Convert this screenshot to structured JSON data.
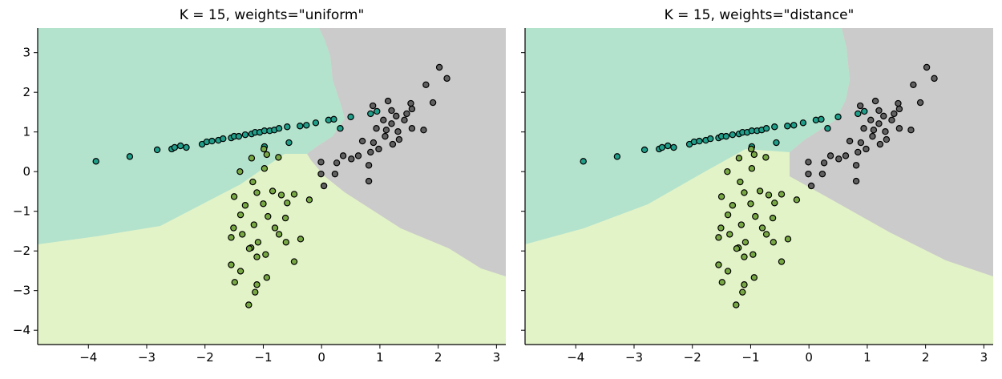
{
  "chart_data": [
    {
      "type": "scatter",
      "title": "K = 15, weights=\"uniform\"",
      "xlim": [
        -4.87,
        3.16
      ],
      "ylim": [
        -4.36,
        3.62
      ],
      "xticks": [
        {
          "value": -4,
          "label": "−4"
        },
        {
          "value": -3,
          "label": "−3"
        },
        {
          "value": -2,
          "label": "−2"
        },
        {
          "value": -1,
          "label": "−1"
        },
        0,
        1,
        2,
        3
      ],
      "yticks": [
        {
          "value": -4,
          "label": "−4"
        },
        {
          "value": -3,
          "label": "−3"
        },
        {
          "value": -2,
          "label": "−2"
        },
        {
          "value": -1,
          "label": "−1"
        },
        0,
        1,
        2,
        3
      ],
      "ytick_labels": true,
      "series": [
        {
          "color": "#1f9e89",
          "x": [
            -3.87,
            -3.29,
            -2.82,
            -2.57,
            -2.52,
            -2.42,
            -2.32,
            -2.05,
            -1.97,
            -1.88,
            -1.77,
            -1.69,
            -1.55,
            -1.5,
            -1.42,
            -1.31,
            -1.2,
            -1.14,
            -1.06,
            -0.98,
            -0.89,
            -0.81,
            -0.73,
            -0.59,
            -0.37,
            -0.26,
            -0.1,
            0.12,
            0.21,
            0.5,
            0.84,
            0.95,
            0.32,
            -0.56,
            -0.98
          ],
          "y": [
            0.26,
            0.38,
            0.55,
            0.57,
            0.61,
            0.65,
            0.61,
            0.69,
            0.75,
            0.77,
            0.79,
            0.83,
            0.85,
            0.89,
            0.89,
            0.93,
            0.95,
            0.99,
            0.99,
            1.03,
            1.03,
            1.05,
            1.09,
            1.13,
            1.15,
            1.17,
            1.23,
            1.3,
            1.32,
            1.38,
            1.46,
            1.52,
            1.09,
            0.73,
            0.63
          ]
        },
        {
          "color": "#78a844",
          "x": [
            -0.99,
            -0.94,
            -1.2,
            -0.74,
            -1.4,
            -0.98,
            -1.18,
            -1.5,
            -1.11,
            -0.84,
            -0.47,
            -0.69,
            -0.21,
            -1.31,
            -1.0,
            -0.59,
            -1.39,
            -0.92,
            -0.62,
            -1.16,
            -1.51,
            -0.8,
            -1.36,
            -0.73,
            -0.36,
            -1.55,
            -1.09,
            -1.21,
            -0.61,
            -0.96,
            -1.55,
            -0.47,
            -1.39,
            -0.94,
            -1.49,
            -1.11,
            -1.14,
            -1.25,
            -1.24,
            -1.11
          ],
          "y": [
            0.57,
            0.43,
            0.34,
            0.36,
            0.0,
            0.08,
            -0.26,
            -0.63,
            -0.53,
            -0.49,
            -0.57,
            -0.59,
            -0.71,
            -0.85,
            -0.81,
            -0.79,
            -1.09,
            -1.13,
            -1.17,
            -1.34,
            -1.42,
            -1.42,
            -1.58,
            -1.58,
            -1.7,
            -1.66,
            -1.78,
            -1.92,
            -1.78,
            -2.09,
            -2.35,
            -2.27,
            -2.51,
            -2.67,
            -2.79,
            -2.85,
            -3.04,
            -3.36,
            -1.94,
            -2.15
          ]
        },
        {
          "color": "#606060",
          "x": [
            2.02,
            2.15,
            1.79,
            0.88,
            1.14,
            1.53,
            1.91,
            1.55,
            1.28,
            1.06,
            1.2,
            1.42,
            0.94,
            1.11,
            1.31,
            1.55,
            1.09,
            1.33,
            1.75,
            0.89,
            1.22,
            0.7,
            0.98,
            0.84,
            0.63,
            0.51,
            0.37,
            -0.01,
            0.26,
            0.81,
            -0.01,
            0.23,
            0.04,
            0.81,
            1.46,
            1.2
          ],
          "y": [
            2.63,
            2.35,
            2.19,
            1.66,
            1.78,
            1.72,
            1.74,
            1.58,
            1.4,
            1.3,
            1.21,
            1.3,
            1.09,
            1.05,
            1.01,
            1.09,
            0.89,
            0.81,
            1.05,
            0.73,
            0.69,
            0.77,
            0.57,
            0.49,
            0.4,
            0.32,
            0.4,
            0.24,
            0.22,
            0.16,
            -0.06,
            -0.06,
            -0.36,
            -0.24,
            1.46,
            1.54
          ]
        }
      ]
    },
    {
      "type": "scatter",
      "title": "K = 15, weights=\"distance\"",
      "xlim": [
        -4.87,
        3.16
      ],
      "ylim": [
        -4.36,
        3.62
      ],
      "xticks": [
        {
          "value": -4,
          "label": "−4"
        },
        {
          "value": -3,
          "label": "−3"
        },
        {
          "value": -2,
          "label": "−2"
        },
        {
          "value": -1,
          "label": "−1"
        },
        0,
        1,
        2,
        3
      ],
      "yticks": [
        -4,
        -3,
        -2,
        -1,
        0,
        1,
        2,
        3
      ],
      "ytick_labels": false,
      "series": [
        {
          "color": "#1f9e89",
          "x": [
            -3.87,
            -3.29,
            -2.82,
            -2.57,
            -2.52,
            -2.42,
            -2.32,
            -2.05,
            -1.97,
            -1.88,
            -1.77,
            -1.69,
            -1.55,
            -1.5,
            -1.42,
            -1.31,
            -1.2,
            -1.14,
            -1.06,
            -0.98,
            -0.89,
            -0.81,
            -0.73,
            -0.59,
            -0.37,
            -0.26,
            -0.1,
            0.12,
            0.21,
            0.5,
            0.84,
            0.95,
            0.32,
            -0.56,
            -0.98
          ],
          "y": [
            0.26,
            0.38,
            0.55,
            0.57,
            0.61,
            0.65,
            0.61,
            0.69,
            0.75,
            0.77,
            0.79,
            0.83,
            0.85,
            0.89,
            0.89,
            0.93,
            0.95,
            0.99,
            0.99,
            1.03,
            1.03,
            1.05,
            1.09,
            1.13,
            1.15,
            1.17,
            1.23,
            1.3,
            1.32,
            1.38,
            1.46,
            1.52,
            1.09,
            0.73,
            0.63
          ]
        },
        {
          "color": "#78a844",
          "x": [
            -0.99,
            -0.94,
            -1.2,
            -0.74,
            -1.4,
            -0.98,
            -1.18,
            -1.5,
            -1.11,
            -0.84,
            -0.47,
            -0.69,
            -0.21,
            -1.31,
            -1.0,
            -0.59,
            -1.39,
            -0.92,
            -0.62,
            -1.16,
            -1.51,
            -0.8,
            -1.36,
            -0.73,
            -0.36,
            -1.55,
            -1.09,
            -1.21,
            -0.61,
            -0.96,
            -1.55,
            -0.47,
            -1.39,
            -0.94,
            -1.49,
            -1.11,
            -1.14,
            -1.25,
            -1.24,
            -1.11
          ],
          "y": [
            0.57,
            0.43,
            0.34,
            0.36,
            0.0,
            0.08,
            -0.26,
            -0.63,
            -0.53,
            -0.49,
            -0.57,
            -0.59,
            -0.71,
            -0.85,
            -0.81,
            -0.79,
            -1.09,
            -1.13,
            -1.17,
            -1.34,
            -1.42,
            -1.42,
            -1.58,
            -1.58,
            -1.7,
            -1.66,
            -1.78,
            -1.92,
            -1.78,
            -2.09,
            -2.35,
            -2.27,
            -2.51,
            -2.67,
            -2.79,
            -2.85,
            -3.04,
            -3.36,
            -1.94,
            -2.15
          ]
        },
        {
          "color": "#606060",
          "x": [
            2.02,
            2.15,
            1.79,
            0.88,
            1.14,
            1.53,
            1.91,
            1.55,
            1.28,
            1.06,
            1.2,
            1.42,
            0.94,
            1.11,
            1.31,
            1.55,
            1.09,
            1.33,
            1.75,
            0.89,
            1.22,
            0.7,
            0.98,
            0.84,
            0.63,
            0.51,
            0.37,
            -0.01,
            0.26,
            0.81,
            -0.01,
            0.23,
            0.04,
            0.81,
            1.46,
            1.2
          ],
          "y": [
            2.63,
            2.35,
            2.19,
            1.66,
            1.78,
            1.72,
            1.74,
            1.58,
            1.4,
            1.3,
            1.21,
            1.3,
            1.09,
            1.05,
            1.01,
            1.09,
            0.89,
            0.81,
            1.05,
            0.73,
            0.69,
            0.77,
            0.57,
            0.49,
            0.4,
            0.32,
            0.4,
            0.24,
            0.22,
            0.16,
            -0.06,
            -0.06,
            -0.36,
            -0.24,
            1.46,
            1.54
          ]
        }
      ]
    }
  ]
}
